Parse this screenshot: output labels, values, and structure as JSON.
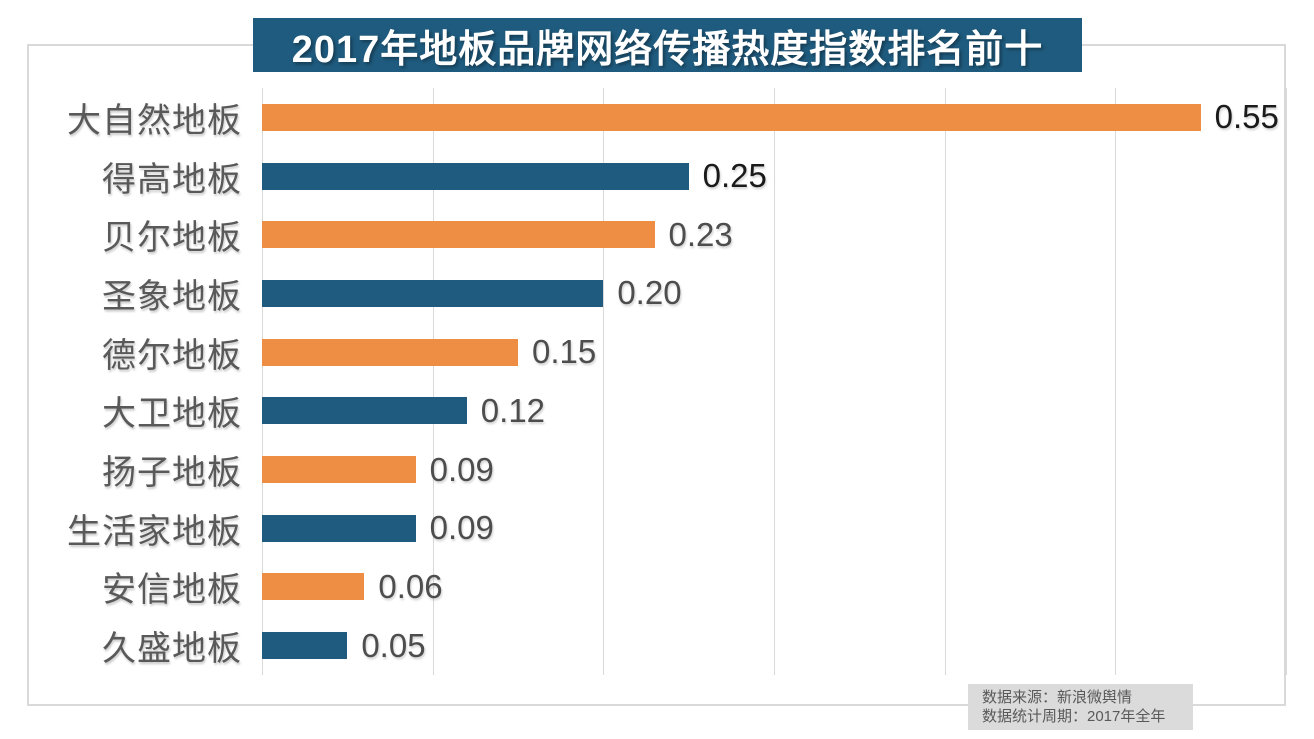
{
  "title": {
    "text": "2017年地板品牌网络传播热度指数排名前十"
  },
  "chart_data": {
    "type": "bar",
    "orientation": "horizontal",
    "title": "2017年地板品牌网络传播热度指数排名前十",
    "xlabel": "",
    "ylabel": "",
    "xlim": [
      0,
      0.6
    ],
    "grid": true,
    "grid_ticks": [
      0,
      0.1,
      0.2,
      0.3,
      0.4,
      0.5,
      0.6
    ],
    "legend": "none",
    "categories": [
      "大自然地板",
      "得高地板",
      "贝尔地板",
      "圣象地板",
      "德尔地板",
      "大卫地板",
      "扬子地板",
      "生活家地板",
      "安信地板",
      "久盛地板"
    ],
    "values": [
      0.55,
      0.25,
      0.23,
      0.2,
      0.15,
      0.12,
      0.09,
      0.09,
      0.06,
      0.05
    ],
    "items": [
      {
        "label": "大自然地板",
        "value": 0.55,
        "text": "0.55",
        "color": "orange",
        "emphasis": true
      },
      {
        "label": "得高地板",
        "value": 0.25,
        "text": "0.25",
        "color": "blue",
        "emphasis": true
      },
      {
        "label": "贝尔地板",
        "value": 0.23,
        "text": "0.23",
        "color": "orange",
        "emphasis": false
      },
      {
        "label": "圣象地板",
        "value": 0.2,
        "text": "0.20",
        "color": "blue",
        "emphasis": false
      },
      {
        "label": "德尔地板",
        "value": 0.15,
        "text": "0.15",
        "color": "orange",
        "emphasis": false
      },
      {
        "label": "大卫地板",
        "value": 0.12,
        "text": "0.12",
        "color": "blue",
        "emphasis": false
      },
      {
        "label": "扬子地板",
        "value": 0.09,
        "text": "0.09",
        "color": "orange",
        "emphasis": false
      },
      {
        "label": "生活家地板",
        "value": 0.09,
        "text": "0.09",
        "color": "blue",
        "emphasis": false
      },
      {
        "label": "安信地板",
        "value": 0.06,
        "text": "0.06",
        "color": "orange",
        "emphasis": false
      },
      {
        "label": "久盛地板",
        "value": 0.05,
        "text": "0.05",
        "color": "blue",
        "emphasis": false
      }
    ]
  },
  "footer": {
    "line1": "数据来源：新浪微舆情",
    "line2": "数据统计周期：2017年全年"
  },
  "colors": {
    "orange": "#EE8E44",
    "blue": "#1F5B7E",
    "title_bg": "#1F5B7E",
    "title_text": "#FFFFFF",
    "grid": "#D9D9D9",
    "frame_border": "#D9D9D9",
    "label_text": "#595959",
    "value_default": "#4D4D4D",
    "value_emphasis": "#1A1A1A",
    "footer_bg": "#DBDBDB",
    "footer_text": "#595959"
  }
}
